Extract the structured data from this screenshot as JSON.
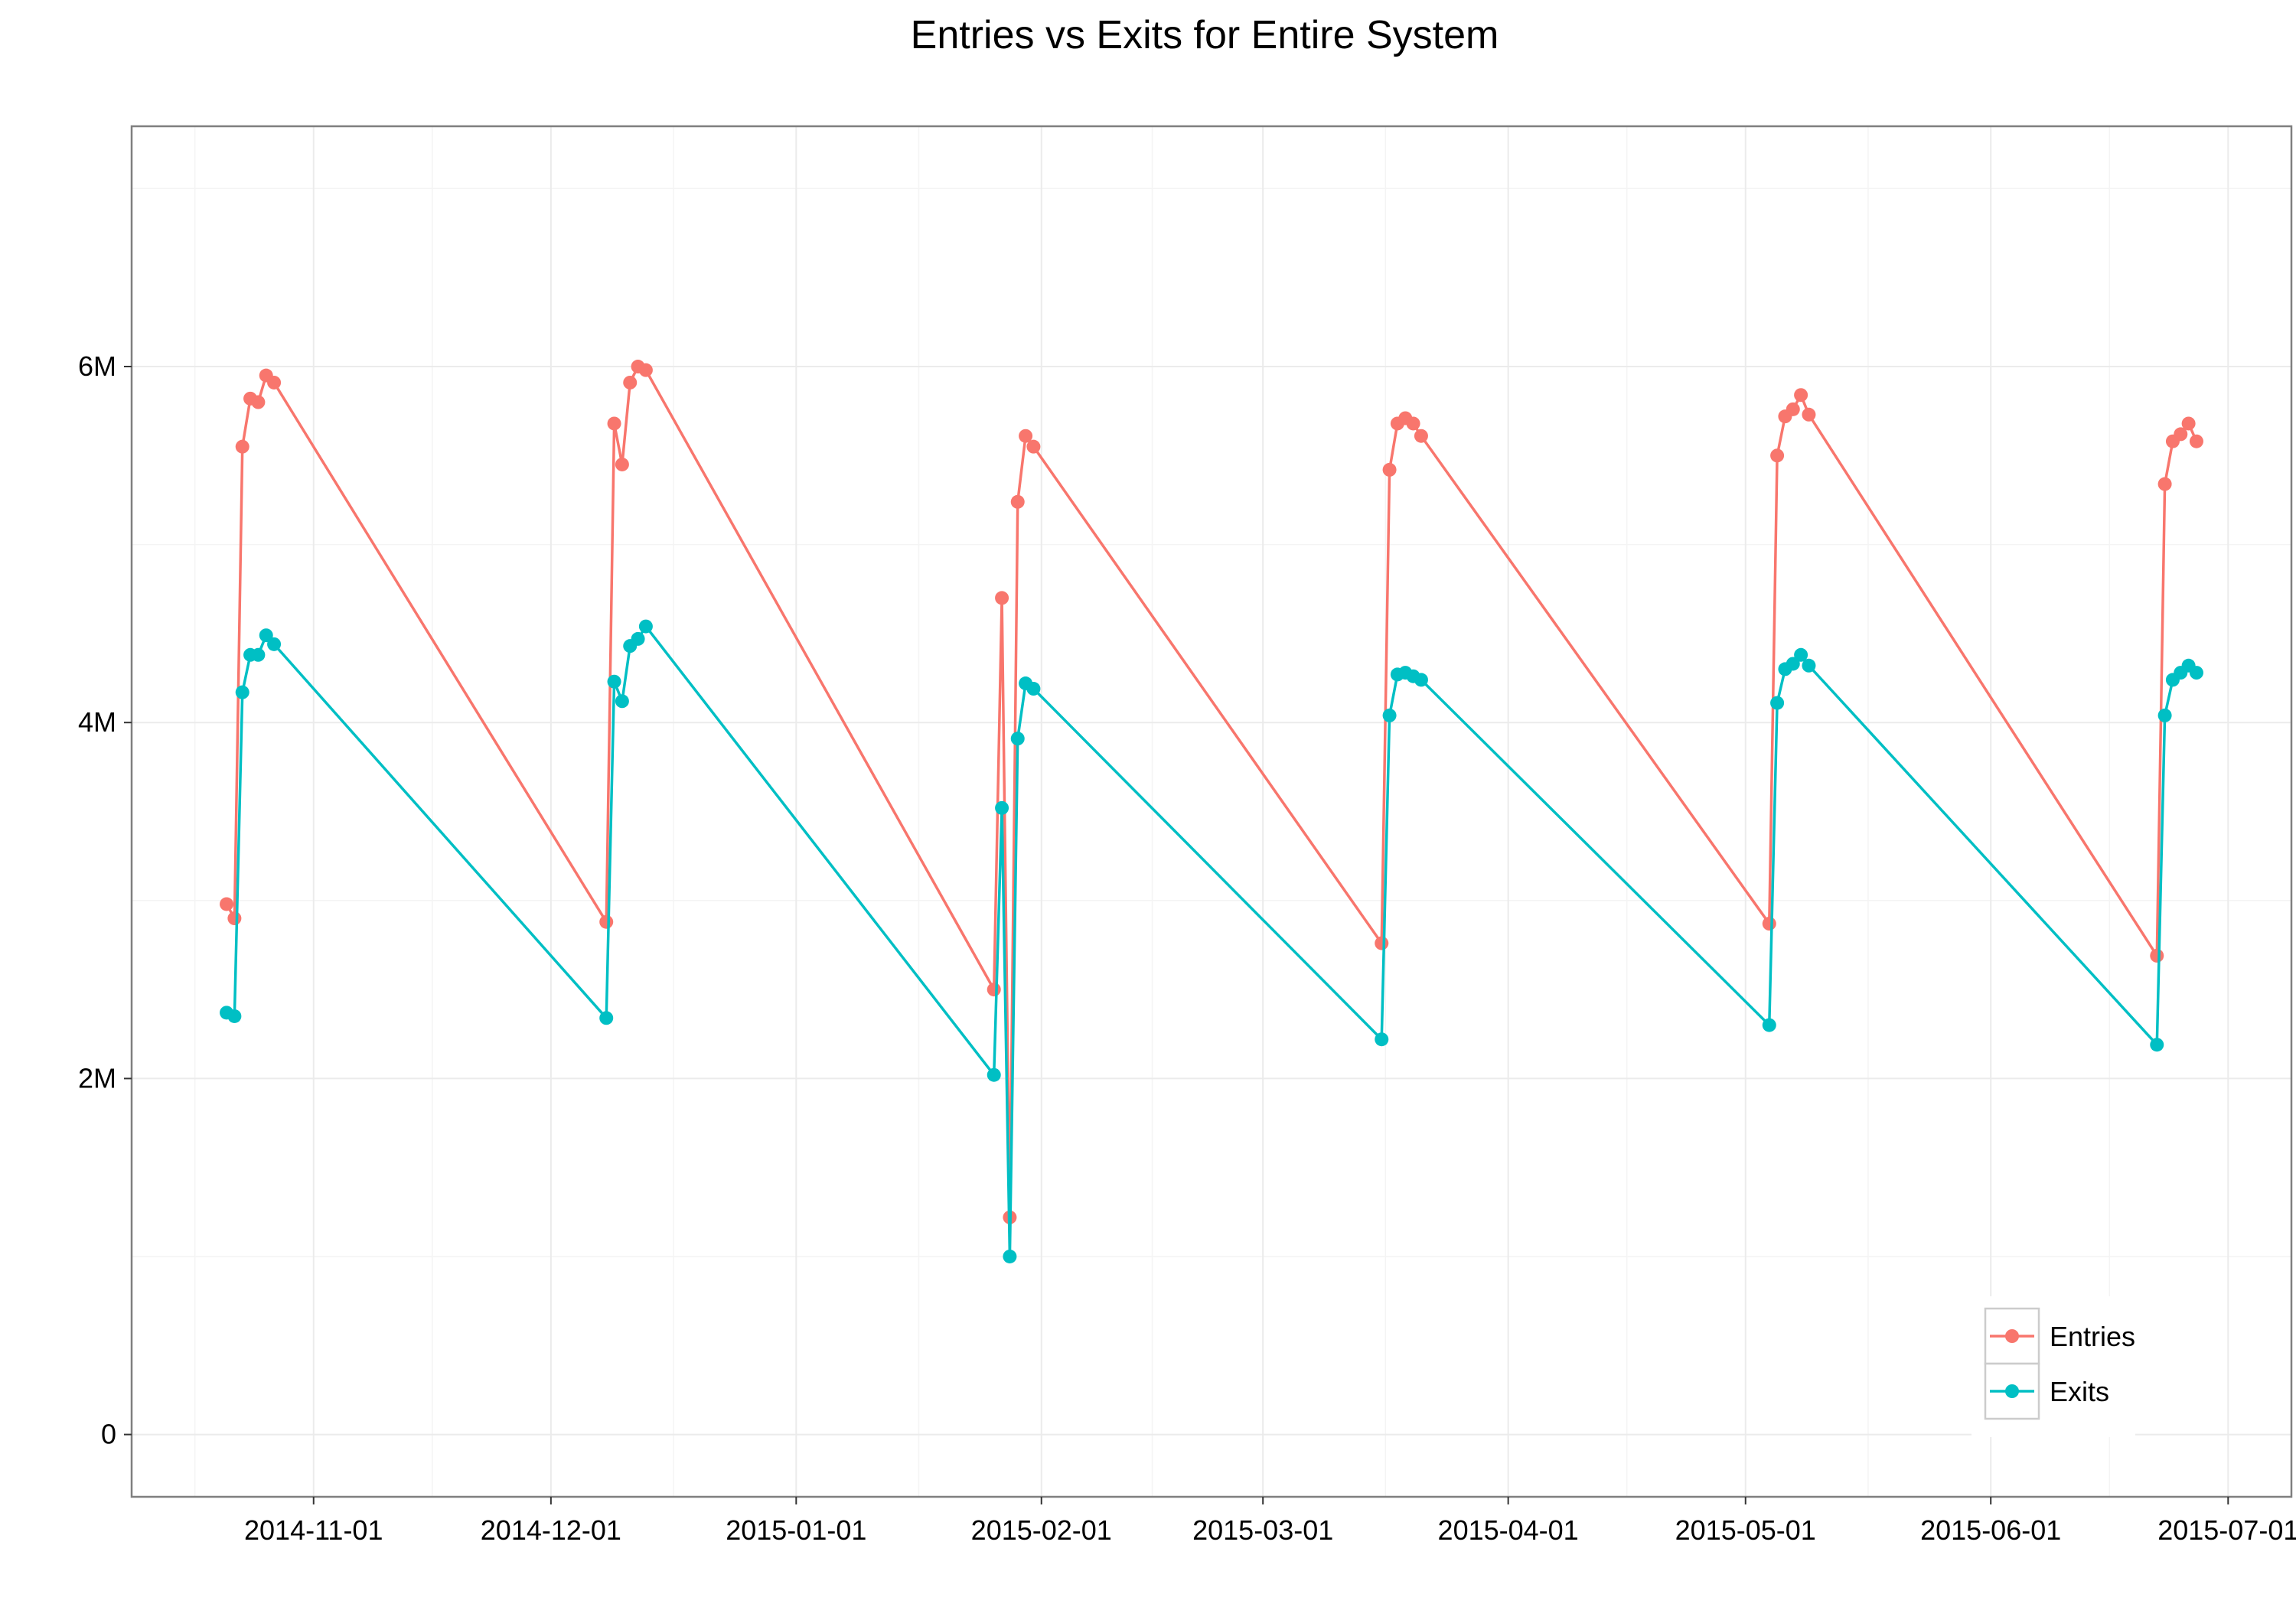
{
  "chart_data": {
    "type": "line",
    "title": "Entries vs Exits for Entire System",
    "xlabel": "",
    "ylabel": "",
    "x_axis": {
      "type": "date",
      "range": [
        "2014-10-09",
        "2015-07-09"
      ],
      "ticks": [
        "2014-11-01",
        "2014-12-01",
        "2015-01-01",
        "2015-02-01",
        "2015-03-01",
        "2015-04-01",
        "2015-05-01",
        "2015-06-01",
        "2015-07-01"
      ]
    },
    "y_axis": {
      "range": [
        -350000,
        7350000
      ],
      "ticks": [
        0,
        2000000,
        4000000,
        6000000
      ],
      "tick_labels": [
        "0",
        "2M",
        "4M",
        "6M"
      ]
    },
    "grid": true,
    "legend": {
      "position": "bottom-right",
      "entries": [
        "Entries",
        "Exits"
      ]
    },
    "series": [
      {
        "name": "Entries",
        "color": "#F8766D",
        "points": [
          [
            "2014-10-21",
            2980000
          ],
          [
            "2014-10-22",
            2900000
          ],
          [
            "2014-10-23",
            5550000
          ],
          [
            "2014-10-24",
            5820000
          ],
          [
            "2014-10-25",
            5800000
          ],
          [
            "2014-10-26",
            5950000
          ],
          [
            "2014-10-27",
            5910000
          ],
          [
            "2014-12-08",
            2880000
          ],
          [
            "2014-12-09",
            5680000
          ],
          [
            "2014-12-10",
            5450000
          ],
          [
            "2014-12-11",
            5910000
          ],
          [
            "2014-12-12",
            6000000
          ],
          [
            "2014-12-13",
            5980000
          ],
          [
            "2015-01-26",
            2500000
          ],
          [
            "2015-01-27",
            4700000
          ],
          [
            "2015-01-28",
            1220000
          ],
          [
            "2015-01-29",
            5240000
          ],
          [
            "2015-01-30",
            5610000
          ],
          [
            "2015-01-31",
            5550000
          ],
          [
            "2015-03-16",
            2760000
          ],
          [
            "2015-03-17",
            5420000
          ],
          [
            "2015-03-18",
            5680000
          ],
          [
            "2015-03-19",
            5710000
          ],
          [
            "2015-03-20",
            5680000
          ],
          [
            "2015-03-21",
            5610000
          ],
          [
            "2015-05-04",
            2870000
          ],
          [
            "2015-05-05",
            5500000
          ],
          [
            "2015-05-06",
            5720000
          ],
          [
            "2015-05-07",
            5760000
          ],
          [
            "2015-05-08",
            5840000
          ],
          [
            "2015-05-09",
            5730000
          ],
          [
            "2015-06-22",
            2690000
          ],
          [
            "2015-06-23",
            5340000
          ],
          [
            "2015-06-24",
            5580000
          ],
          [
            "2015-06-25",
            5620000
          ],
          [
            "2015-06-26",
            5680000
          ],
          [
            "2015-06-27",
            5580000
          ]
        ]
      },
      {
        "name": "Exits",
        "color": "#00BFC4",
        "points": [
          [
            "2014-10-21",
            2370000
          ],
          [
            "2014-10-22",
            2350000
          ],
          [
            "2014-10-23",
            4170000
          ],
          [
            "2014-10-24",
            4380000
          ],
          [
            "2014-10-25",
            4380000
          ],
          [
            "2014-10-26",
            4490000
          ],
          [
            "2014-10-27",
            4440000
          ],
          [
            "2014-12-08",
            2340000
          ],
          [
            "2014-12-09",
            4230000
          ],
          [
            "2014-12-10",
            4120000
          ],
          [
            "2014-12-11",
            4430000
          ],
          [
            "2014-12-12",
            4470000
          ],
          [
            "2014-12-13",
            4540000
          ],
          [
            "2015-01-26",
            2020000
          ],
          [
            "2015-01-27",
            3520000
          ],
          [
            "2015-01-28",
            1000000
          ],
          [
            "2015-01-29",
            3910000
          ],
          [
            "2015-01-30",
            4220000
          ],
          [
            "2015-01-31",
            4190000
          ],
          [
            "2015-03-16",
            2220000
          ],
          [
            "2015-03-17",
            4040000
          ],
          [
            "2015-03-18",
            4270000
          ],
          [
            "2015-03-19",
            4280000
          ],
          [
            "2015-03-20",
            4260000
          ],
          [
            "2015-03-21",
            4240000
          ],
          [
            "2015-05-04",
            2300000
          ],
          [
            "2015-05-05",
            4110000
          ],
          [
            "2015-05-06",
            4300000
          ],
          [
            "2015-05-07",
            4330000
          ],
          [
            "2015-05-08",
            4380000
          ],
          [
            "2015-05-09",
            4320000
          ],
          [
            "2015-06-22",
            2190000
          ],
          [
            "2015-06-23",
            4040000
          ],
          [
            "2015-06-24",
            4240000
          ],
          [
            "2015-06-25",
            4280000
          ],
          [
            "2015-06-26",
            4320000
          ],
          [
            "2015-06-27",
            4280000
          ]
        ]
      }
    ]
  }
}
